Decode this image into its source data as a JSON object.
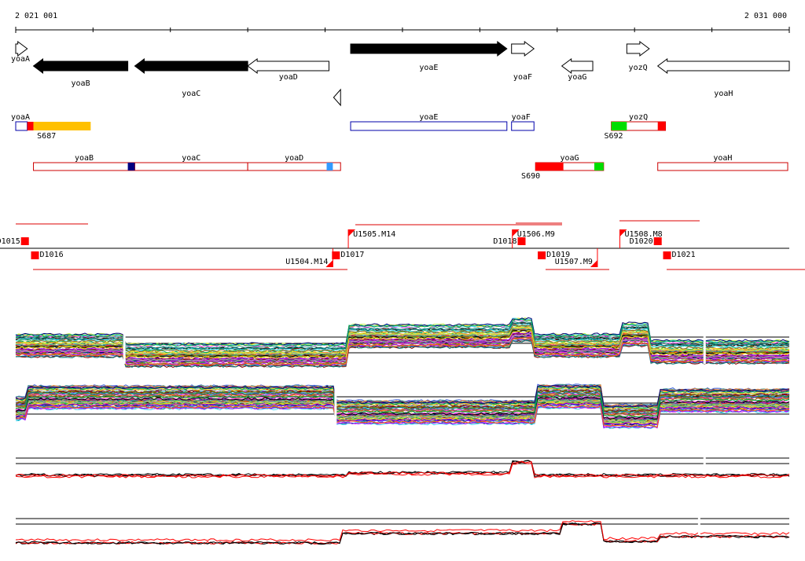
{
  "ruler": {
    "start_label": "2 021 001",
    "end_label": "2 031 000",
    "start": 2021001,
    "end": 2031000
  },
  "genes": [
    {
      "name": "yoaA",
      "start": 2021001,
      "end": 2021150,
      "strand": "+",
      "fill": "white"
    },
    {
      "name": "yoaB",
      "start": 2021230,
      "end": 2022450,
      "strand": "-",
      "fill": "black"
    },
    {
      "name": "yoaC",
      "start": 2022540,
      "end": 2024000,
      "strand": "-",
      "fill": "black"
    },
    {
      "name": "yoaD",
      "start": 2024000,
      "end": 2025050,
      "strand": "-",
      "fill": "white"
    },
    {
      "name": "",
      "start": 2025110,
      "end": 2025200,
      "strand": "-",
      "fill": "white"
    },
    {
      "name": "yoaE",
      "start": 2025330,
      "end": 2027350,
      "strand": "+",
      "fill": "black"
    },
    {
      "name": "yoaF",
      "start": 2027410,
      "end": 2027700,
      "strand": "+",
      "fill": "white"
    },
    {
      "name": "yoaG",
      "start": 2028060,
      "end": 2028460,
      "strand": "-",
      "fill": "white"
    },
    {
      "name": "yozQ",
      "start": 2028900,
      "end": 2029190,
      "strand": "+",
      "fill": "white"
    },
    {
      "name": "yoaH",
      "start": 2029300,
      "end": 2031000,
      "strand": "-",
      "fill": "white"
    }
  ],
  "upper_features": [
    {
      "label": "yoaA",
      "start": 2021001,
      "end": 2021150,
      "color": "#0000aa"
    },
    {
      "label": "yoaE",
      "start": 2025330,
      "end": 2027350,
      "color": "#0000aa"
    },
    {
      "label": "yoaF",
      "start": 2027410,
      "end": 2027700,
      "color": "#0000aa"
    },
    {
      "label": "yozQ",
      "start": 2028700,
      "end": 2029400,
      "color": "#cc0000"
    }
  ],
  "upper_marks": [
    {
      "start": 2021150,
      "end": 2021230,
      "color": "#ff0000"
    },
    {
      "start": 2021230,
      "end": 2021970,
      "color": "#ffc000"
    },
    {
      "start": 2028700,
      "end": 2028900,
      "color": "#00dd00"
    },
    {
      "start": 2029300,
      "end": 2029400,
      "color": "#ff0000"
    }
  ],
  "upper_sites": [
    {
      "label": "S687",
      "pos": 2021460
    },
    {
      "label": "S692",
      "pos": 2028790
    }
  ],
  "lower_features": [
    {
      "label": "yoaB",
      "start": 2021230,
      "end": 2022540,
      "color": "#cc0000"
    },
    {
      "label": "yoaC",
      "start": 2022540,
      "end": 2024000,
      "color": "#cc0000"
    },
    {
      "label": "yoaD",
      "start": 2024000,
      "end": 2025200,
      "color": "#cc0000"
    },
    {
      "label": "yoaG",
      "start": 2027720,
      "end": 2028600,
      "color": "#cc0000"
    },
    {
      "label": "yoaH",
      "start": 2029300,
      "end": 2030980,
      "color": "#cc0000"
    }
  ],
  "lower_marks": [
    {
      "start": 2022450,
      "end": 2022540,
      "color": "#000080"
    },
    {
      "start": 2025020,
      "end": 2025100,
      "color": "#3399ff"
    },
    {
      "start": 2027720,
      "end": 2028080,
      "color": "#ff0000"
    },
    {
      "start": 2028480,
      "end": 2028600,
      "color": "#00dd00"
    }
  ],
  "lower_sites": [
    {
      "label": "S690",
      "pos": 2027820
    }
  ],
  "transcription": [
    {
      "label": "D1015",
      "pos": 2021120,
      "side": "upper",
      "anchor": "end"
    },
    {
      "label": "D1016",
      "pos": 2021250,
      "side": "lower",
      "anchor": "start"
    },
    {
      "label": "U1504.M14",
      "pos": 2025100,
      "side": "lower",
      "anchor": "end"
    },
    {
      "label": "D1017",
      "pos": 2025140,
      "side": "lower",
      "anchor": "start"
    },
    {
      "label": "U1505.M14",
      "pos": 2025300,
      "side": "upper",
      "anchor": "start"
    },
    {
      "label": "D1018",
      "pos": 2027540,
      "side": "upper",
      "anchor": "end"
    },
    {
      "label": "U1506.M9",
      "pos": 2027420,
      "side": "upper",
      "anchor": "start"
    },
    {
      "label": "D1019",
      "pos": 2027800,
      "side": "lower",
      "anchor": "start"
    },
    {
      "label": "U1507.M9",
      "pos": 2028520,
      "side": "lower",
      "anchor": "end"
    },
    {
      "label": "U1508.M8",
      "pos": 2028810,
      "side": "upper",
      "anchor": "start"
    },
    {
      "label": "D1020",
      "pos": 2029300,
      "side": "upper",
      "anchor": "end"
    },
    {
      "label": "D1021",
      "pos": 2029420,
      "side": "lower",
      "anchor": "start"
    }
  ],
  "expression_panels": [
    {
      "name": "forward-strand-tiling",
      "series_count": 60,
      "breaks": [
        2022400,
        2029900
      ]
    },
    {
      "name": "reverse-strand-tiling",
      "series_count": 60,
      "breaks": [
        2025130
      ]
    },
    {
      "name": "forward-strand-summary",
      "series_count": 4,
      "breaks": [
        2029900
      ]
    },
    {
      "name": "reverse-strand-summary",
      "series_count": 4,
      "breaks": [
        2029830
      ]
    }
  ],
  "colors": {
    "feature_outline_blue": "#0000aa",
    "feature_outline_red": "#cc0000",
    "mark_red": "#ff0000",
    "mark_orange": "#ffc000",
    "mark_green": "#00dd00",
    "mark_navy": "#000080",
    "mark_light_blue": "#3399ff"
  }
}
